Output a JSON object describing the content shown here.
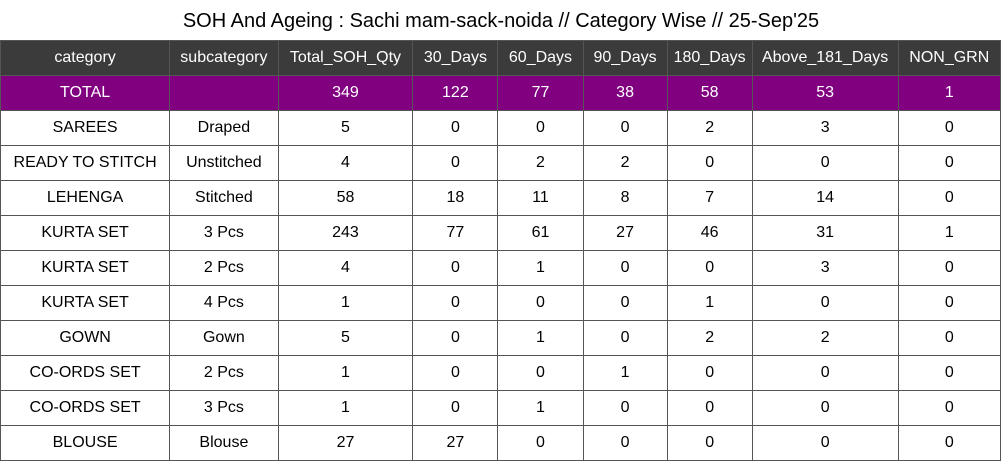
{
  "title": "SOH And Ageing : Sachi mam-sack-noida // Category Wise // 25-Sep'25",
  "columns": [
    "category",
    "subcategory",
    "Total_SOH_Qty",
    "30_Days",
    "60_Days",
    "90_Days",
    "180_Days",
    "Above_181_Days",
    "NON_GRN"
  ],
  "total_row": [
    "TOTAL",
    "",
    "349",
    "122",
    "77",
    "38",
    "58",
    "53",
    "1"
  ],
  "rows": [
    [
      "SAREES",
      "Draped",
      "5",
      "0",
      "0",
      "0",
      "2",
      "3",
      "0"
    ],
    [
      "READY TO STITCH",
      "Unstitched",
      "4",
      "0",
      "2",
      "2",
      "0",
      "0",
      "0"
    ],
    [
      "LEHENGA",
      "Stitched",
      "58",
      "18",
      "11",
      "8",
      "7",
      "14",
      "0"
    ],
    [
      "KURTA SET",
      "3 Pcs",
      "243",
      "77",
      "61",
      "27",
      "46",
      "31",
      "1"
    ],
    [
      "KURTA SET",
      "2 Pcs",
      "4",
      "0",
      "1",
      "0",
      "0",
      "3",
      "0"
    ],
    [
      "KURTA SET",
      "4 Pcs",
      "1",
      "0",
      "0",
      "0",
      "1",
      "0",
      "0"
    ],
    [
      "GOWN",
      "Gown",
      "5",
      "0",
      "1",
      "0",
      "2",
      "2",
      "0"
    ],
    [
      "CO-ORDS SET",
      "2 Pcs",
      "1",
      "0",
      "0",
      "1",
      "0",
      "0",
      "0"
    ],
    [
      "CO-ORDS SET",
      "3 Pcs",
      "1",
      "0",
      "1",
      "0",
      "0",
      "0",
      "0"
    ],
    [
      "BLOUSE",
      "Blouse",
      "27",
      "27",
      "0",
      "0",
      "0",
      "0",
      "0"
    ]
  ],
  "colors": {
    "header_bg": "#3b3b3b",
    "total_bg": "#800080"
  }
}
